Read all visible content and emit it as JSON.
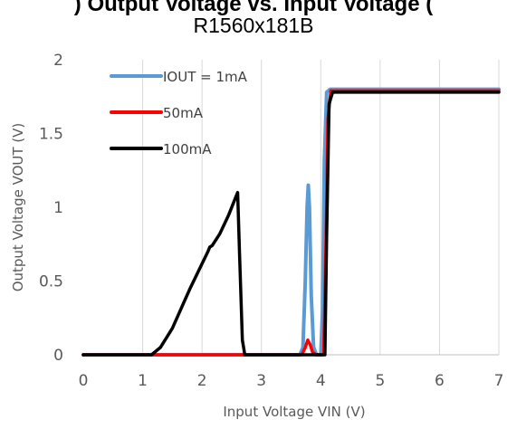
{
  "chart_data": {
    "type": "line",
    "title": "R1560x181B",
    "title_partial": ") Output Voltage vs. Input Voltage (",
    "xlabel": "Input Voltage VIN (V)",
    "ylabel": "Output Voltage VOUT (V)",
    "xlim": [
      0,
      7
    ],
    "ylim": [
      0,
      2
    ],
    "xticks": [
      "0",
      "1",
      "2",
      "3",
      "4",
      "5",
      "6",
      "7"
    ],
    "yticks": [
      "0",
      "0.5",
      "1",
      "1.5",
      "2"
    ],
    "grid": "vertical",
    "legend": "top-left",
    "series": [
      {
        "name": "IOUT = 1mA",
        "color": "#5B9BD5",
        "x": [
          0,
          3.65,
          3.7,
          3.74,
          3.77,
          3.79,
          3.81,
          3.84,
          3.88,
          3.93,
          4.0,
          4.03,
          4.06,
          4.1,
          4.16,
          7
        ],
        "y": [
          0,
          0,
          0.05,
          0.5,
          1.0,
          1.15,
          1.0,
          0.4,
          0.05,
          0,
          0,
          0.3,
          1.3,
          1.78,
          1.8,
          1.8
        ]
      },
      {
        "name": "50mA",
        "color": "#FF0000",
        "x": [
          0,
          3.68,
          3.74,
          3.78,
          3.82,
          3.86,
          3.92,
          4.05,
          4.09,
          4.12,
          4.17,
          7
        ],
        "y": [
          0,
          0,
          0.05,
          0.1,
          0.07,
          0.02,
          0,
          0,
          0.8,
          1.6,
          1.79,
          1.79
        ]
      },
      {
        "name": "100mA",
        "color": "#000000",
        "x": [
          0,
          1.15,
          1.3,
          1.5,
          1.8,
          2.1,
          2.13,
          2.17,
          2.3,
          2.45,
          2.55,
          2.6,
          2.63,
          2.68,
          2.72,
          4.07,
          4.1,
          4.14,
          4.2,
          7
        ],
        "y": [
          0,
          0,
          0.05,
          0.18,
          0.45,
          0.7,
          0.73,
          0.74,
          0.82,
          0.95,
          1.05,
          1.1,
          0.7,
          0.1,
          0,
          0,
          0.8,
          1.7,
          1.78,
          1.78
        ]
      }
    ]
  }
}
